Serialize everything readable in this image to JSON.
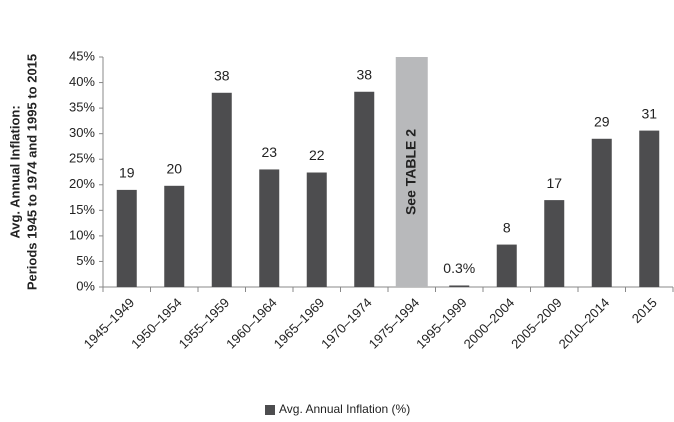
{
  "chart_data": {
    "type": "bar",
    "y_label_lines": [
      "Avg. Annual Inflation:",
      "Periods 1945 to 1974 and 1995 to 2015"
    ],
    "categories": [
      "1945–1949",
      "1950–1954",
      "1955–1959",
      "1960–1964",
      "1965–1969",
      "1970–1974",
      "1975–1994",
      "1995–1999",
      "2000–2004",
      "2005–2009",
      "2010–2014",
      "2015"
    ],
    "series": [
      {
        "name": "Avg. Annual Inflation (%)",
        "color": "#4d4d4f",
        "values": [
          19,
          19.8,
          38,
          23,
          22.4,
          38.2,
          null,
          0.3,
          8.3,
          17,
          29,
          30.6
        ],
        "value_labels": [
          "19",
          "20",
          "38",
          "23",
          "22",
          "38",
          null,
          "0.3%",
          "8",
          "17",
          "29",
          "31"
        ]
      }
    ],
    "placeholder": {
      "index": 6,
      "label": "See TABLE 2",
      "color": "#b8b9bb"
    },
    "ylim": [
      0,
      45
    ],
    "yticks": [
      {
        "value": 0,
        "label": "0%"
      },
      {
        "value": 5,
        "label": "5%"
      },
      {
        "value": 10,
        "label": "10%"
      },
      {
        "value": 15,
        "label": "15%"
      },
      {
        "value": 20,
        "label": "20%"
      },
      {
        "value": 25,
        "label": "25%"
      },
      {
        "value": 30,
        "label": "30%"
      },
      {
        "value": 35,
        "label": "35%"
      },
      {
        "value": 40,
        "label": "40%"
      },
      {
        "value": 45,
        "label": "45%"
      }
    ],
    "grid": false,
    "legend": "bottom"
  }
}
